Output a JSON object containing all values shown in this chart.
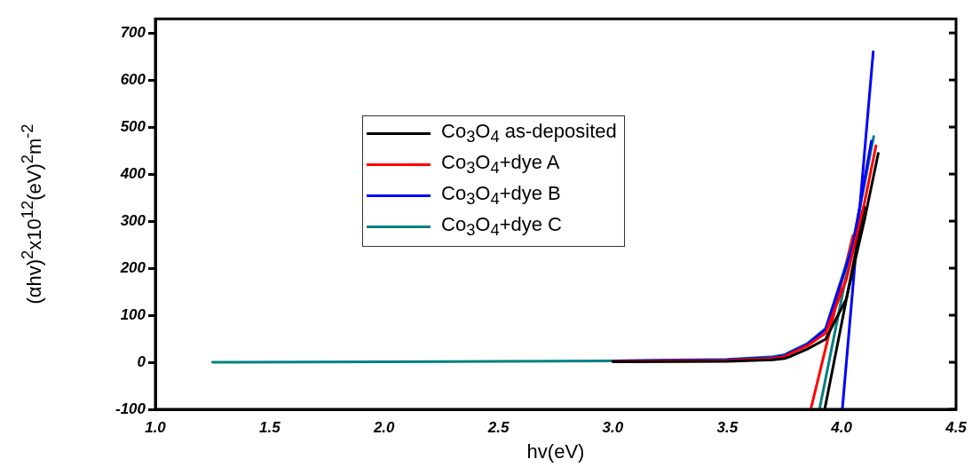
{
  "chart_data": {
    "type": "line",
    "xlabel": "hv(eV)",
    "ylabel": "(αhv)$^{2}$x10$^{12}$(eV)$^{2}$m$^{-2}$",
    "xlim": [
      1.0,
      4.5
    ],
    "ylim": [
      -100,
      730
    ],
    "xticks": [
      {
        "value": 1.0,
        "label": "1.0"
      },
      1.5,
      {
        "value": 2.0,
        "label": "2.0"
      },
      2.5,
      {
        "value": 3.0,
        "label": "3.0"
      },
      3.5,
      {
        "value": 4.0,
        "label": "4.0"
      },
      4.5
    ],
    "yticks": [
      -100,
      0,
      100,
      200,
      300,
      400,
      500,
      600,
      700
    ],
    "grid": false,
    "legend": "top",
    "marker": "none",
    "line_style": "solid",
    "series": [
      {
        "name": "Co$_{3}$O$_{4}$ as-deposited",
        "color": "#000000",
        "x": [
          3.0,
          3.5,
          3.7,
          3.75,
          3.77,
          3.85,
          3.93,
          4.02,
          4.1,
          4.16
        ],
        "values": [
          1,
          2,
          5,
          8,
          11,
          28,
          49,
          134,
          303,
          444
        ]
      },
      {
        "name": "Co$_{3}$O$_{4}$+dye A",
        "color": "#ff0000",
        "x": [
          3.0,
          3.5,
          3.7,
          3.75,
          3.77,
          3.85,
          3.93,
          4.02,
          4.1,
          4.15
        ],
        "values": [
          2,
          4,
          8,
          12,
          17,
          35,
          62,
          175,
          340,
          460
        ]
      },
      {
        "name": "Co$_{3}$O$_{4}$+dye B",
        "color": "#0000ff",
        "x": [
          3.0,
          3.5,
          3.7,
          3.75,
          3.77,
          3.85,
          3.93,
          4.05,
          4.13
        ],
        "values": [
          3,
          5,
          10,
          14,
          19,
          38,
          70,
          250,
          470
        ]
      },
      {
        "name": "Co$_{3}$O$_{4}$+dye C",
        "color": "#008080",
        "x": [
          1.25,
          2.0,
          2.5,
          3.0,
          3.5,
          3.7,
          3.75,
          3.77,
          3.85,
          3.93,
          4.05,
          4.1,
          4.14
        ],
        "values": [
          0,
          1,
          2,
          3,
          6,
          12,
          16,
          21,
          40,
          72,
          254,
          379,
          480
        ]
      },
      {
        "type": "line",
        "color": "#ff0000",
        "x": [
          3.865,
          4.05
        ],
        "values": [
          -100,
          270
        ]
      },
      {
        "type": "line",
        "color": "#008080",
        "x": [
          3.903,
          4.08
        ],
        "values": [
          -100,
          330
        ]
      },
      {
        "type": "line",
        "color": "#000000",
        "x": [
          3.926,
          4.1
        ],
        "values": [
          -100,
          330
        ]
      },
      {
        "type": "line",
        "color": "#0000ff",
        "x": [
          4.003,
          4.138
        ],
        "values": [
          -100,
          660
        ]
      }
    ]
  }
}
